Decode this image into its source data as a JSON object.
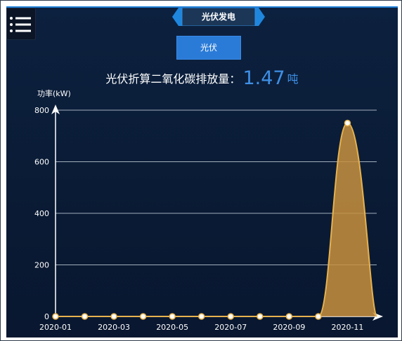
{
  "header": {
    "title": "光伏发电"
  },
  "toolbar": {
    "pv_button_label": "光伏"
  },
  "co2": {
    "label": "光伏折算二氧化碳排放量：",
    "value": "1.47",
    "unit": "吨"
  },
  "icons": {
    "menu": "menu-icon"
  },
  "colors": {
    "accent": "#2a7bd8",
    "value_text": "#3f8fe6",
    "series_line": "#e6b24e",
    "series_fill": "#c8913e",
    "panel_bg": "#0c213f"
  },
  "chart_data": {
    "type": "area",
    "ylabel": "功率(kW)",
    "ylim": [
      0,
      800
    ],
    "y_ticks": [
      "0",
      "200",
      "400",
      "600",
      "800"
    ],
    "x_tick_labels": [
      "2020-01",
      "2020-03",
      "2020-05",
      "2020-07",
      "2020-09",
      "2020-11"
    ],
    "x": [
      "2020-01",
      "2020-02",
      "2020-03",
      "2020-04",
      "2020-05",
      "2020-06",
      "2020-07",
      "2020-08",
      "2020-09",
      "2020-10",
      "2020-11",
      "2020-12"
    ],
    "values": [
      0,
      0,
      0,
      0,
      0,
      0,
      0,
      0,
      0,
      0,
      750,
      0
    ],
    "grid": true
  }
}
